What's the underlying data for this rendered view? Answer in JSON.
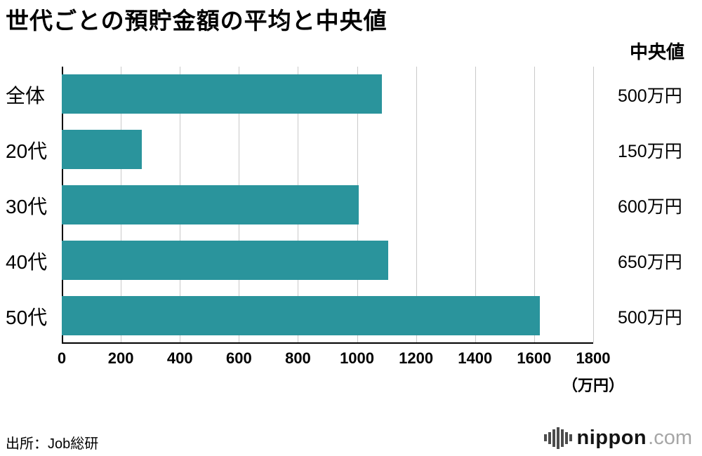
{
  "title": "世代ごとの預貯金額の平均と中央値",
  "median_header": "中央値",
  "source": "出所：Job総研",
  "logo": {
    "name": "nippon",
    "tld": ".com",
    "icon": "equalizer-bars-icon"
  },
  "chart_data": {
    "type": "bar",
    "orientation": "horizontal",
    "title": "世代ごとの預貯金額の平均と中央値",
    "categories": [
      "全体",
      "20代",
      "30代",
      "40代",
      "50代"
    ],
    "series": [
      {
        "name": "平均",
        "values": [
          1085,
          270,
          1005,
          1105,
          1620
        ]
      },
      {
        "name": "中央値",
        "values": [
          500,
          150,
          600,
          650,
          500
        ]
      }
    ],
    "values": [
      1085,
      270,
      1005,
      1105,
      1620
    ],
    "medians": [
      "500万円",
      "150万円",
      "600万円",
      "650万円",
      "500万円"
    ],
    "xlim": [
      0,
      1800
    ],
    "xticks": [
      0,
      200,
      400,
      600,
      800,
      1000,
      1200,
      1400,
      1600,
      1800
    ],
    "x_unit": "（万円）",
    "xlabel": "万円",
    "ylabel": "",
    "grid": true,
    "legend_position": "none",
    "bar_color": "#2a949c",
    "grid_color": "#c9c9c9"
  }
}
